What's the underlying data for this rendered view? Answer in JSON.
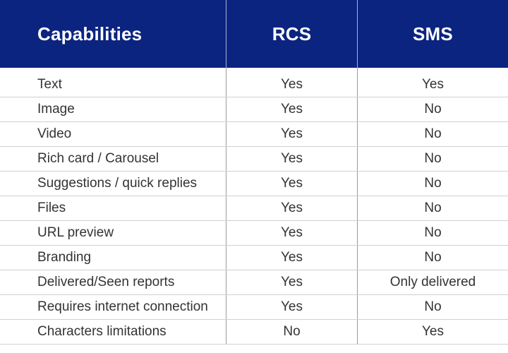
{
  "header": {
    "col1": "Capabilities",
    "col2": "RCS",
    "col3": "SMS"
  },
  "rows": [
    {
      "capability": "Text",
      "rcs": "Yes",
      "sms": "Yes"
    },
    {
      "capability": "Image",
      "rcs": "Yes",
      "sms": "No"
    },
    {
      "capability": "Video",
      "rcs": "Yes",
      "sms": "No"
    },
    {
      "capability": "Rich card / Carousel",
      "rcs": "Yes",
      "sms": "No"
    },
    {
      "capability": "Suggestions / quick replies",
      "rcs": "Yes",
      "sms": "No"
    },
    {
      "capability": "Files",
      "rcs": "Yes",
      "sms": "No"
    },
    {
      "capability": "URL preview",
      "rcs": "Yes",
      "sms": "No"
    },
    {
      "capability": "Branding",
      "rcs": "Yes",
      "sms": "No"
    },
    {
      "capability": "Delivered/Seen reports",
      "rcs": "Yes",
      "sms": "Only delivered"
    },
    {
      "capability": "Requires internet connection",
      "rcs": "Yes",
      "sms": "No"
    },
    {
      "capability": "Characters limitations",
      "rcs": "No",
      "sms": "Yes"
    }
  ],
  "colors": {
    "header_bg": "#0b2480",
    "header_text": "#ffffff",
    "body_text": "#333333",
    "row_divider": "#d0d0d0"
  }
}
